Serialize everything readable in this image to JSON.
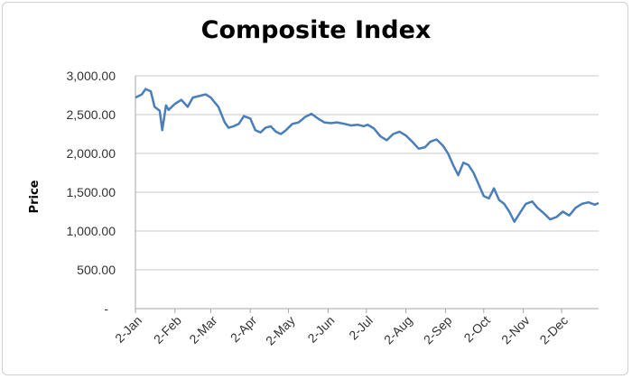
{
  "chart_data": {
    "type": "line",
    "title": "Composite Index",
    "xlabel": "",
    "ylabel": "Price",
    "ylim": [
      0,
      3000
    ],
    "grid": true,
    "legend": "none",
    "y_tick_labels": [
      "-",
      "500.00",
      "1,000.00",
      "1,500.00",
      "2,000.00",
      "2,500.00",
      "3,000.00"
    ],
    "x_tick_labels": [
      "2-Jan",
      "2-Feb",
      "2-Mar",
      "2-Apr",
      "2-May",
      "2-Jun",
      "2-Jul",
      "2-Aug",
      "2-Sep",
      "2-Oct",
      "2-Nov",
      "2-Dec"
    ],
    "series": [
      {
        "color": "#4a7ebb",
        "x": [
          "2-Jan",
          "7-Jan",
          "10-Jan",
          "14-Jan",
          "17-Jan",
          "21-Jan",
          "23-Jan",
          "26-Jan",
          "28-Jan",
          "2-Feb",
          "7-Feb",
          "12-Feb",
          "16-Feb",
          "21-Feb",
          "26-Feb",
          "2-Mar",
          "8-Mar",
          "13-Mar",
          "16-Mar",
          "20-Mar",
          "24-Mar",
          "28-Mar",
          "2-Apr",
          "6-Apr",
          "10-Apr",
          "14-Apr",
          "18-Apr",
          "22-Apr",
          "26-Apr",
          "30-Apr",
          "5-May",
          "10-May",
          "15-May",
          "20-May",
          "25-May",
          "30-May",
          "4-Jun",
          "9-Jun",
          "15-Jun",
          "20-Jun",
          "25-Jun",
          "30-Jun",
          "3-Jul",
          "8-Jul",
          "13-Jul",
          "18-Jul",
          "23-Jul",
          "28-Jul",
          "2-Aug",
          "7-Aug",
          "12-Aug",
          "17-Aug",
          "21-Aug",
          "26-Aug",
          "31-Aug",
          "4-Sep",
          "8-Sep",
          "12-Sep",
          "16-Sep",
          "20-Sep",
          "24-Sep",
          "28-Sep",
          "2-Oct",
          "6-Oct",
          "10-Oct",
          "14-Oct",
          "18-Oct",
          "22-Oct",
          "26-Oct",
          "31-Oct",
          "4-Nov",
          "9-Nov",
          "13-Nov",
          "18-Nov",
          "23-Nov",
          "28-Nov",
          "3-Dec",
          "8-Dec",
          "13-Dec",
          "18-Dec",
          "23-Dec",
          "28-Dec",
          "31-Dec"
        ],
        "y": [
          2720,
          2760,
          2830,
          2800,
          2600,
          2550,
          2300,
          2620,
          2560,
          2640,
          2690,
          2600,
          2720,
          2740,
          2760,
          2720,
          2600,
          2400,
          2330,
          2350,
          2380,
          2480,
          2450,
          2300,
          2270,
          2330,
          2350,
          2280,
          2250,
          2300,
          2380,
          2400,
          2470,
          2510,
          2450,
          2400,
          2390,
          2400,
          2380,
          2360,
          2370,
          2350,
          2370,
          2320,
          2220,
          2170,
          2250,
          2280,
          2230,
          2150,
          2060,
          2080,
          2150,
          2180,
          2100,
          2000,
          1850,
          1720,
          1880,
          1850,
          1750,
          1600,
          1450,
          1420,
          1550,
          1400,
          1350,
          1250,
          1120,
          1250,
          1350,
          1380,
          1300,
          1230,
          1150,
          1180,
          1250,
          1200,
          1300,
          1350,
          1370,
          1340,
          1360
        ]
      }
    ]
  }
}
